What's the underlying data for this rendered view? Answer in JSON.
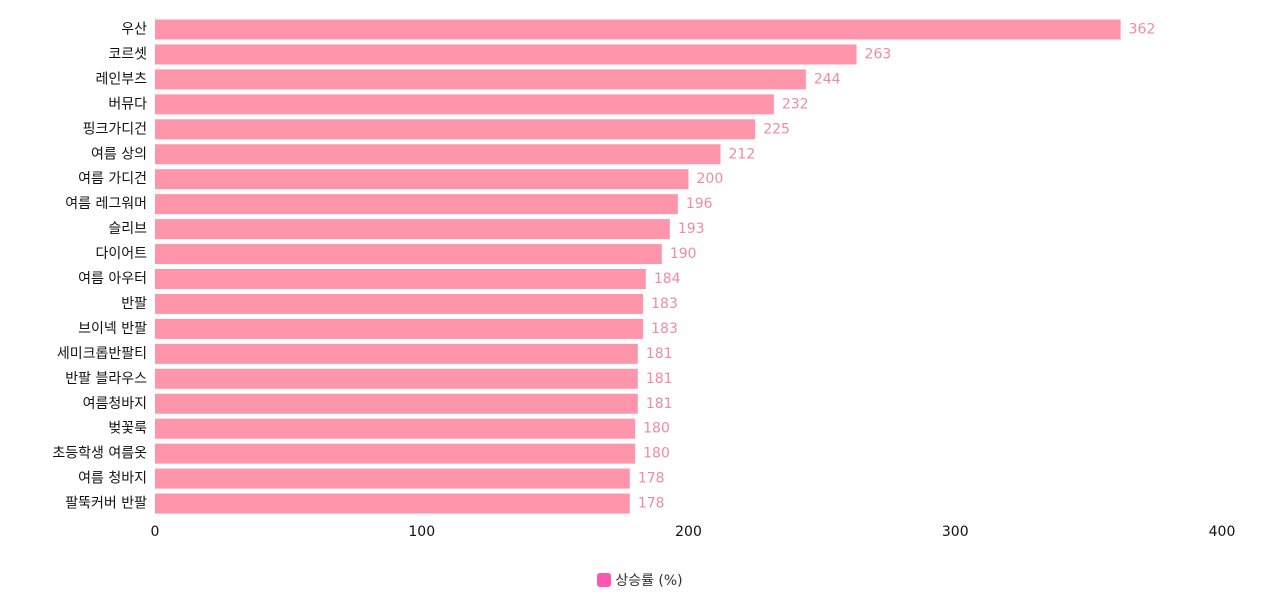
{
  "colors": {
    "bar": "#ff95aa",
    "value_label": "#f08aa4",
    "legend_swatch": "#ff55b3"
  },
  "chart_data": {
    "type": "bar",
    "orientation": "horizontal",
    "categories": [
      "우산",
      "코르셋",
      "레인부츠",
      "버뮤다",
      "핑크가디건",
      "여름 상의",
      "여름 가디건",
      "여름 레그워머",
      "슬리브",
      "다이어트",
      "여름 아우터",
      "반팔",
      "브이넥 반팔",
      "세미크롭반팔티",
      "반팔 블라우스",
      "여름청바지",
      "벚꽃룩",
      "초등학생 여름옷",
      "여름 청바지",
      "팔뚝커버 반팔"
    ],
    "series": [
      {
        "name": "상승률 (%)",
        "values": [
          362,
          263,
          244,
          232,
          225,
          212,
          200,
          196,
          193,
          190,
          184,
          183,
          183,
          181,
          181,
          181,
          180,
          180,
          178,
          178
        ]
      }
    ],
    "x_ticks": [
      "0",
      "100",
      "200",
      "300",
      "400"
    ],
    "xlim": [
      0,
      400
    ],
    "grid": false,
    "data_labels": true,
    "legend_position": "bottom-center"
  }
}
